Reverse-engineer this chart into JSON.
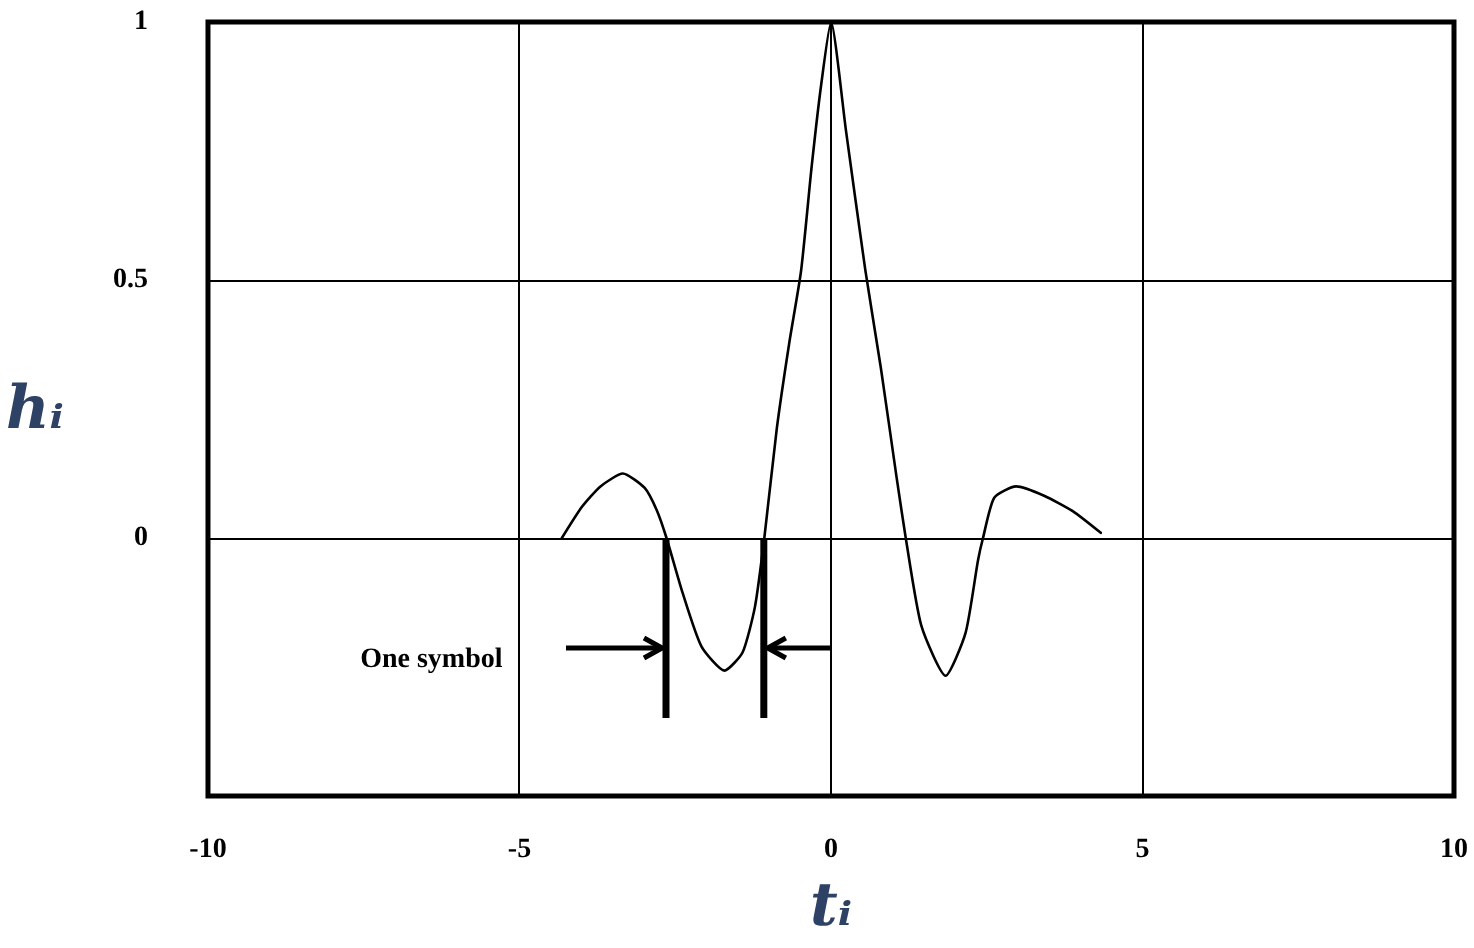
{
  "chart_data": {
    "type": "line",
    "xlabel": "tᵢ",
    "ylabel": "hᵢ",
    "x": [
      -4.32,
      -4.0,
      -3.7,
      -3.34,
      -2.99,
      -2.79,
      -2.64,
      -2.38,
      -2.08,
      -1.71,
      -1.42,
      -1.22,
      -1.07,
      -0.87,
      -0.67,
      -0.48,
      -0.31,
      -0.16,
      0,
      0.24,
      0.55,
      0.8,
      1.05,
      1.2,
      1.45,
      1.84,
      2.16,
      2.36,
      2.44,
      2.62,
      2.97,
      3.42,
      3.88,
      4.33
    ],
    "series": [
      {
        "color": "#000000",
        "values": [
          0,
          0.06,
          0.1,
          0.125,
          0.097,
          0.052,
          0,
          -0.107,
          -0.21,
          -0.257,
          -0.222,
          -0.133,
          0,
          0.212,
          0.378,
          0.518,
          0.72,
          0.876,
          1,
          0.79,
          0.52,
          0.33,
          0.12,
          0,
          -0.17,
          -0.267,
          -0.184,
          -0.043,
          0,
          0.078,
          0.1,
          0.082,
          0.052,
          0.01
        ]
      }
    ],
    "xlim": [
      -10,
      10
    ],
    "xticks": [
      -10,
      -5,
      0,
      5,
      10
    ],
    "ylim": [
      -0.5,
      1
    ],
    "yticks": [
      0,
      0.5,
      1
    ],
    "grid": true,
    "marker": "none",
    "line_style": "solid",
    "annotations": [
      "One symbol"
    ]
  }
}
